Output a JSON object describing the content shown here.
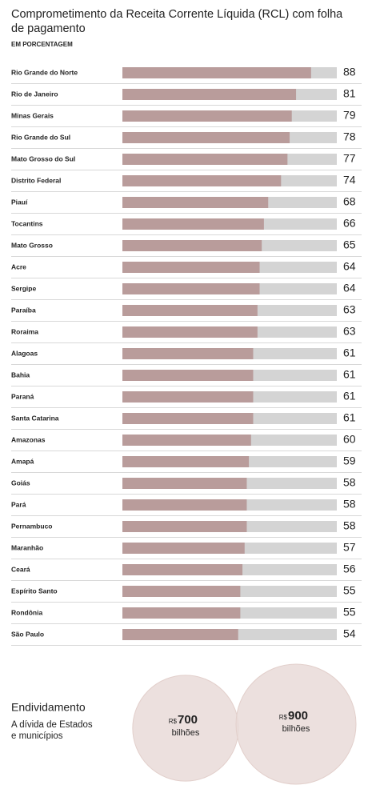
{
  "chart_data": [
    {
      "type": "hbar",
      "title": "Comprometimento da Receita Corrente Líquida (RCL) com folha de pagamento",
      "subtitle": "EM PORCENTAGEM",
      "categories": [
        "Rio Grande do Norte",
        "Rio de Janeiro",
        "Minas Gerais",
        "Rio Grande do Sul",
        "Mato Grosso do Sul",
        "Distrito Federal",
        "Piauí",
        "Tocantins",
        "Mato Grosso",
        "Acre",
        "Sergipe",
        "Paraíba",
        "Roraima",
        "Alagoas",
        "Bahia",
        "Paraná",
        "Santa Catarina",
        "Amazonas",
        "Amapá",
        "Goiás",
        "Pará",
        "Pernambuco",
        "Maranhão",
        "Ceará",
        "Espírito Santo",
        "Rondônia",
        "São Paulo"
      ],
      "values": [
        88,
        81,
        79,
        78,
        77,
        74,
        68,
        66,
        65,
        64,
        64,
        63,
        63,
        61,
        61,
        61,
        61,
        60,
        59,
        58,
        58,
        58,
        57,
        56,
        55,
        55,
        54
      ],
      "xlim": [
        0,
        100
      ],
      "color": "#b99c9b",
      "track_color": "#d4d4d4"
    },
    {
      "type": "circles",
      "title": "Endividamento",
      "subtitle": "A dívida de Estados e municípios",
      "prefix": "R$",
      "unit": "bilhões",
      "values": [
        700,
        900
      ],
      "color": "#e9dbd8"
    }
  ]
}
